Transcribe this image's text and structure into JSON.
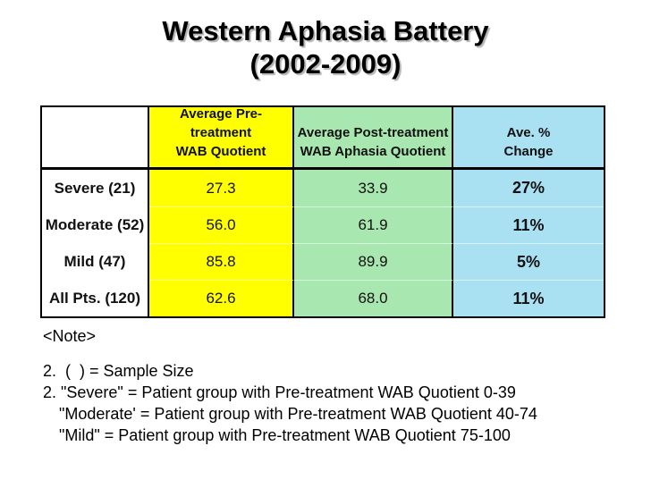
{
  "title": {
    "line1": "Western Aphasia Battery",
    "line2": "(2002-2009)"
  },
  "table": {
    "header": {
      "col1": "",
      "col2_line1": "Average Pre-treatment",
      "col2_line2": "WAB Quotient",
      "col3_line1": "Average Post-treatment",
      "col3_line2": "WAB Aphasia Quotient",
      "col4_line1": "Ave. %",
      "col4_line2": "Change"
    },
    "rows": [
      {
        "label": "Severe (21)",
        "pre": "27.3",
        "post": "33.9",
        "change": "27%"
      },
      {
        "label": "Moderate (52)",
        "pre": "56.0",
        "post": "61.9",
        "change": "11%"
      },
      {
        "label": "Mild (47)",
        "pre": "85.8",
        "post": "89.9",
        "change": "5%"
      },
      {
        "label": "All Pts. (120)",
        "pre": "62.6",
        "post": "68.0",
        "change": "11%"
      }
    ],
    "colors": {
      "pre_column": "#FFFF00",
      "post_column": "#A9E7B0",
      "change_column": "#A9E0F2",
      "border": "#000000"
    }
  },
  "notes": {
    "header": "<Note>",
    "lines": [
      "2.  (  ) = Sample Size",
      "2. \"Severe\" = Patient group with Pre-treatment WAB Quotient 0-39",
      "\"Moderate' = Patient group with Pre-treatment WAB Quotient 40-74",
      "\"Mild\" = Patient group with Pre-treatment WAB Quotient 75-100"
    ]
  }
}
